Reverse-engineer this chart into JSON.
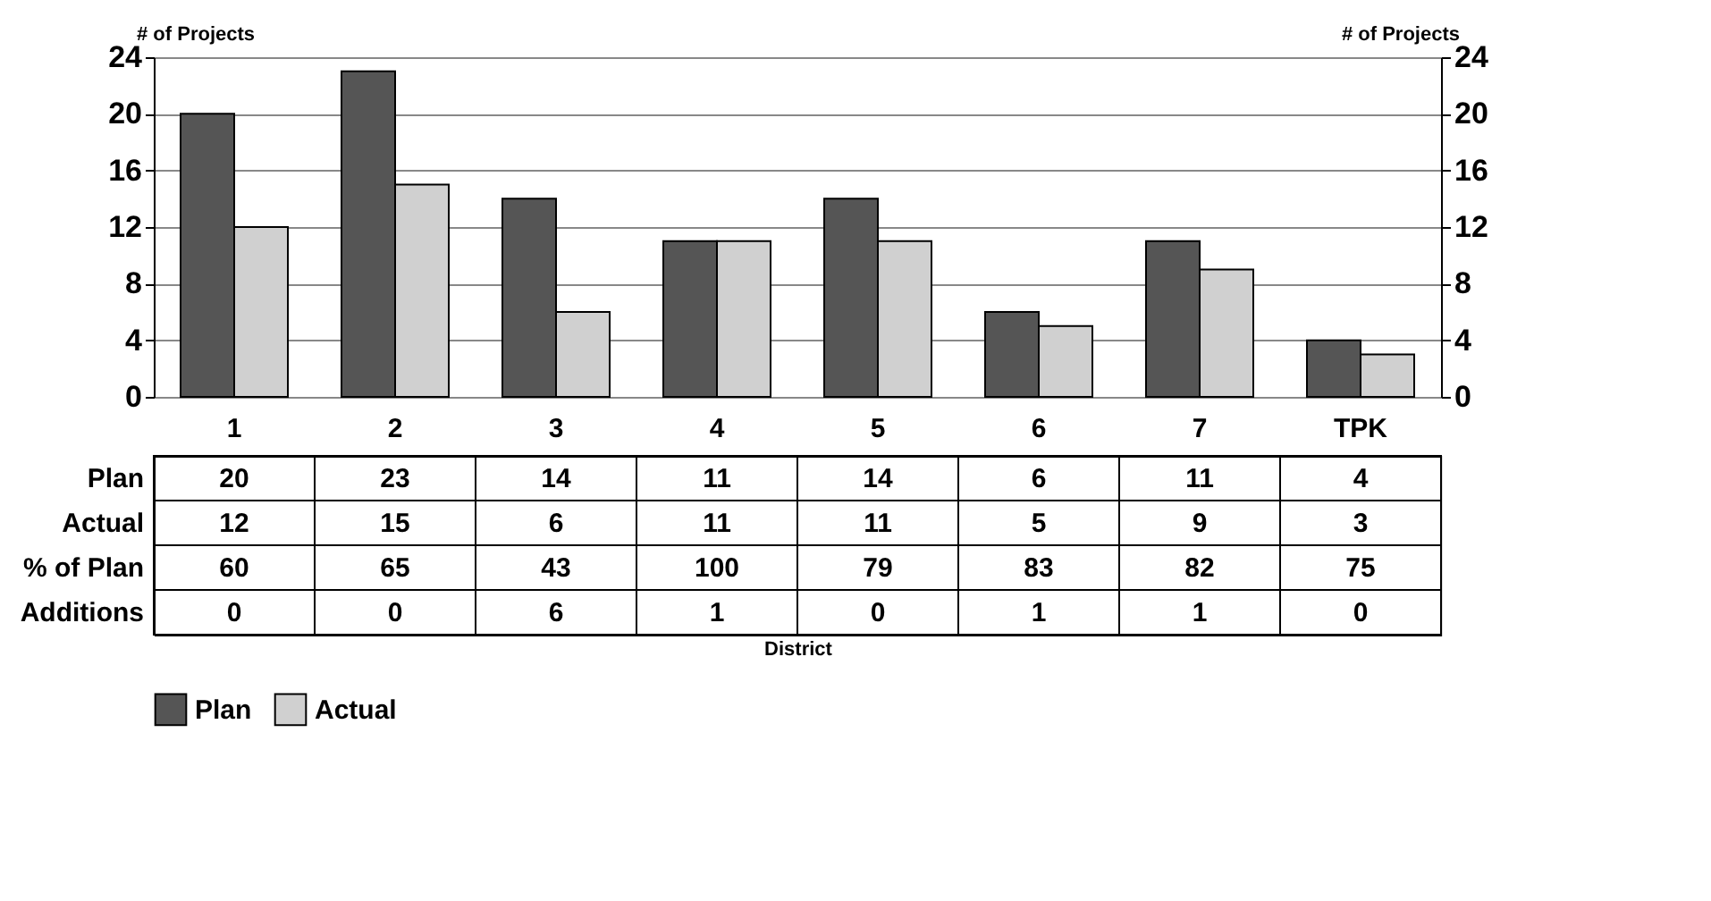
{
  "chart_data": {
    "type": "bar",
    "categories": [
      "1",
      "2",
      "3",
      "4",
      "5",
      "6",
      "7",
      "TPK"
    ],
    "series": [
      {
        "name": "Plan",
        "color": "#555555",
        "values": [
          20,
          23,
          14,
          11,
          14,
          6,
          11,
          4
        ]
      },
      {
        "name": "Actual",
        "color": "#d0d0d0",
        "values": [
          12,
          15,
          6,
          11,
          11,
          5,
          9,
          3
        ]
      }
    ],
    "annotations": [
      "% of Plan",
      "60",
      "65",
      "43",
      "100",
      "79",
      "83",
      "82",
      "75",
      "Additions",
      "0",
      "0",
      "6",
      "1",
      "0",
      "1",
      "1",
      "0",
      "District"
    ],
    "ylabel": "# of Projects",
    "y2label": "# of Projects",
    "ylim": [
      0,
      24
    ],
    "yticks": [
      0,
      4,
      8,
      12,
      16,
      20,
      24
    ],
    "y2lim": [
      0,
      24
    ],
    "y2ticks": [
      0,
      4,
      8,
      12,
      16,
      20,
      24
    ],
    "grid": "y",
    "legend": "bottom",
    "data_labels": true
  }
}
